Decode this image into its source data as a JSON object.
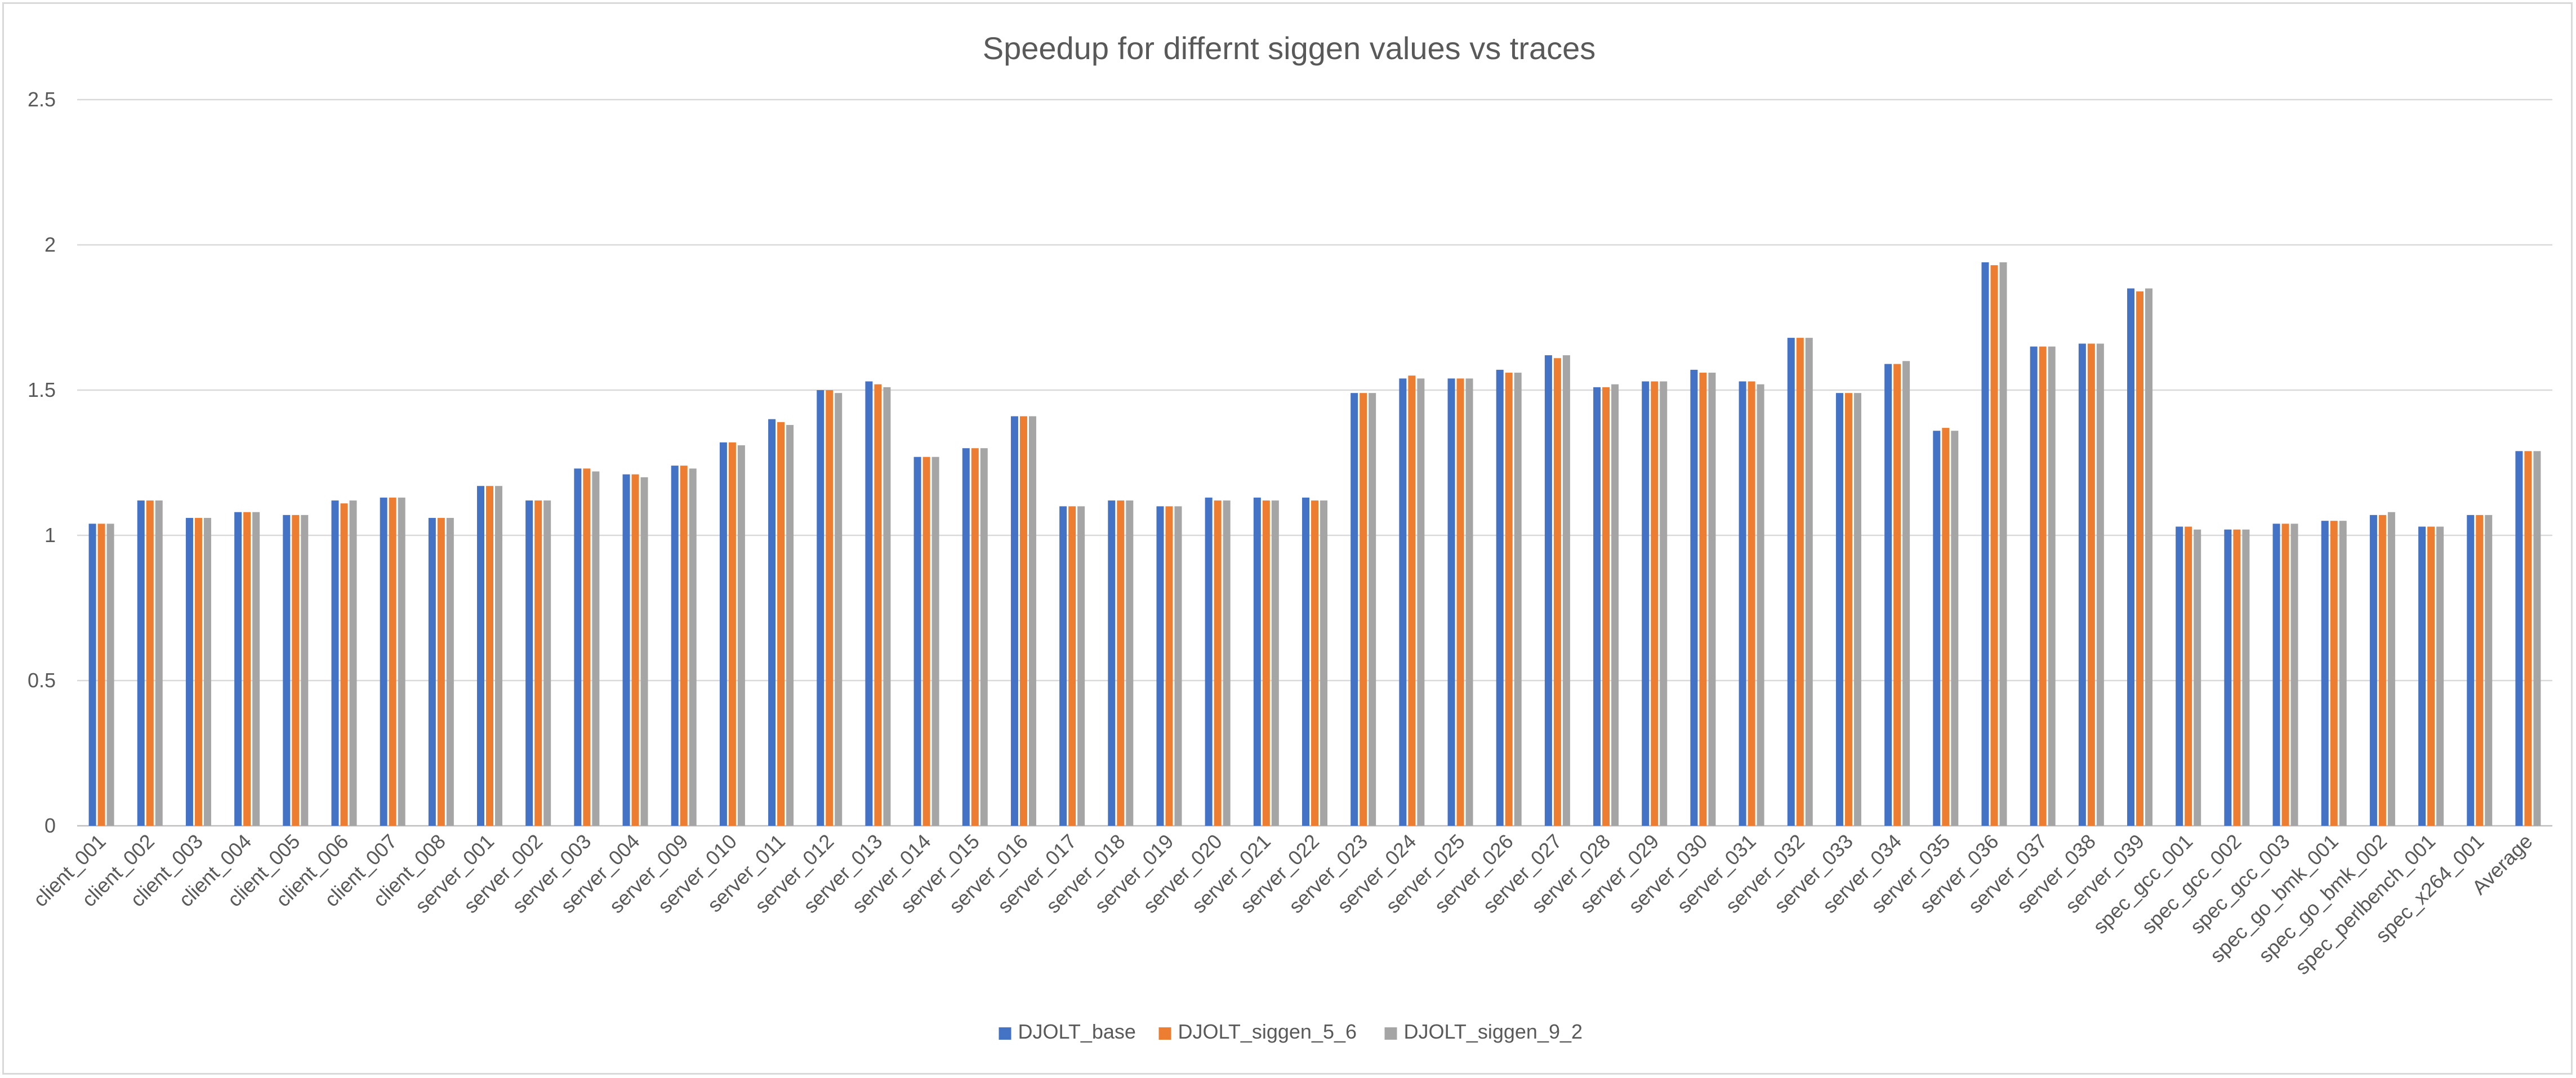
{
  "chart_data": {
    "type": "bar",
    "title": "Speedup for differnt siggen values vs traces",
    "xlabel": "",
    "ylabel": "",
    "ylim": [
      0,
      2.5
    ],
    "yticks": [
      "0",
      "0.5",
      "1",
      "1.5",
      "2",
      "2.5"
    ],
    "grid": true,
    "legend_position": "bottom",
    "categories": [
      "client_001",
      "client_002",
      "client_003",
      "client_004",
      "client_005",
      "client_006",
      "client_007",
      "client_008",
      "server_001",
      "server_002",
      "server_003",
      "server_004",
      "server_009",
      "server_010",
      "server_011",
      "server_012",
      "server_013",
      "server_014",
      "server_015",
      "server_016",
      "server_017",
      "server_018",
      "server_019",
      "server_020",
      "server_021",
      "server_022",
      "server_023",
      "server_024",
      "server_025",
      "server_026",
      "server_027",
      "server_028",
      "server_029",
      "server_030",
      "server_031",
      "server_032",
      "server_033",
      "server_034",
      "server_035",
      "server_036",
      "server_037",
      "server_038",
      "server_039",
      "spec_gcc_001",
      "spec_gcc_002",
      "spec_gcc_003",
      "spec_go_bmk_001",
      "spec_go_bmk_002",
      "spec_perlbench_001",
      "spec_x264_001",
      "Average"
    ],
    "series": [
      {
        "name": "DJOLT_base",
        "color": "#4472C4",
        "values": [
          1.04,
          1.12,
          1.06,
          1.08,
          1.07,
          1.12,
          1.13,
          1.06,
          1.17,
          1.12,
          1.23,
          1.21,
          1.24,
          1.32,
          1.4,
          1.5,
          1.53,
          1.27,
          1.3,
          1.41,
          1.1,
          1.12,
          1.1,
          1.13,
          1.13,
          1.13,
          1.49,
          1.54,
          1.54,
          1.57,
          1.62,
          1.51,
          1.53,
          1.57,
          1.53,
          1.68,
          1.49,
          1.59,
          1.36,
          1.94,
          1.65,
          1.66,
          1.85,
          1.03,
          1.02,
          1.04,
          1.05,
          1.07,
          1.03,
          1.07,
          1.29
        ]
      },
      {
        "name": "DJOLT_siggen_5_6",
        "color": "#ED7D31",
        "values": [
          1.04,
          1.12,
          1.06,
          1.08,
          1.07,
          1.11,
          1.13,
          1.06,
          1.17,
          1.12,
          1.23,
          1.21,
          1.24,
          1.32,
          1.39,
          1.5,
          1.52,
          1.27,
          1.3,
          1.41,
          1.1,
          1.12,
          1.1,
          1.12,
          1.12,
          1.12,
          1.49,
          1.55,
          1.54,
          1.56,
          1.61,
          1.51,
          1.53,
          1.56,
          1.53,
          1.68,
          1.49,
          1.59,
          1.37,
          1.93,
          1.65,
          1.66,
          1.84,
          1.03,
          1.02,
          1.04,
          1.05,
          1.07,
          1.03,
          1.07,
          1.29
        ]
      },
      {
        "name": "DJOLT_siggen_9_2",
        "color": "#A5A5A5",
        "values": [
          1.04,
          1.12,
          1.06,
          1.08,
          1.07,
          1.12,
          1.13,
          1.06,
          1.17,
          1.12,
          1.22,
          1.2,
          1.23,
          1.31,
          1.38,
          1.49,
          1.51,
          1.27,
          1.3,
          1.41,
          1.1,
          1.12,
          1.1,
          1.12,
          1.12,
          1.12,
          1.49,
          1.54,
          1.54,
          1.56,
          1.62,
          1.52,
          1.53,
          1.56,
          1.52,
          1.68,
          1.49,
          1.6,
          1.36,
          1.94,
          1.65,
          1.66,
          1.85,
          1.02,
          1.02,
          1.04,
          1.05,
          1.08,
          1.03,
          1.07,
          1.29
        ]
      }
    ]
  }
}
